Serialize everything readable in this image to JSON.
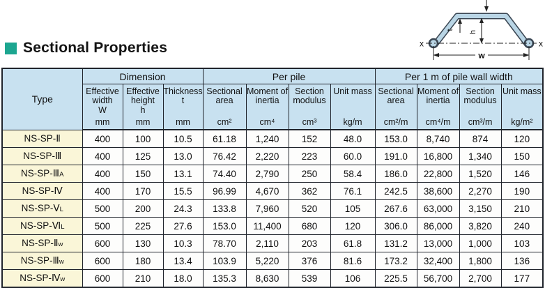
{
  "title": "Sectional Properties",
  "accent_color": "#1ca690",
  "diagram": {
    "labels": {
      "t": "t",
      "h": "h",
      "w": "w",
      "x_left": "x",
      "x_right": "x"
    }
  },
  "table": {
    "corner_header": "Type",
    "groups": [
      {
        "label": "Dimension",
        "span": 3
      },
      {
        "label": "Per pile",
        "span": 4
      },
      {
        "label": "Per 1 m of pile wall width",
        "span": 4
      }
    ],
    "columns": [
      {
        "label": "Effective width",
        "symbol": "W",
        "unit": "mm"
      },
      {
        "label": "Effective height",
        "symbol": "h",
        "unit": "mm"
      },
      {
        "label": "Thickness",
        "symbol": "t",
        "unit": "mm"
      },
      {
        "label": "Sectional area",
        "symbol": "",
        "unit": "cm²"
      },
      {
        "label": "Moment of inertia",
        "symbol": "",
        "unit": "cm⁴"
      },
      {
        "label": "Section modulus",
        "symbol": "",
        "unit": "cm³"
      },
      {
        "label": "Unit mass",
        "symbol": "",
        "unit": "kg/m"
      },
      {
        "label": "Sectional area",
        "symbol": "",
        "unit": "cm²/m"
      },
      {
        "label": "Moment of inertia",
        "symbol": "",
        "unit": "cm⁴/m"
      },
      {
        "label": "Section modulus",
        "symbol": "",
        "unit": "cm³/m"
      },
      {
        "label": "Unit mass",
        "symbol": "",
        "unit": "kg/m²"
      }
    ],
    "rows": [
      {
        "type": "NS-SP-Ⅱ",
        "type_sub": "",
        "values": [
          "400",
          "100",
          "10.5",
          "61.18",
          "1,240",
          "152",
          "48.0",
          "153.0",
          "8,740",
          "874",
          "120"
        ]
      },
      {
        "type": "NS-SP-Ⅲ",
        "type_sub": "",
        "values": [
          "400",
          "125",
          "13.0",
          "76.42",
          "2,220",
          "223",
          "60.0",
          "191.0",
          "16,800",
          "1,340",
          "150"
        ]
      },
      {
        "type": "NS-SP-Ⅲ",
        "type_sub": "A",
        "values": [
          "400",
          "150",
          "13.1",
          "74.40",
          "2,790",
          "250",
          "58.4",
          "186.0",
          "22,800",
          "1,520",
          "146"
        ]
      },
      {
        "type": "NS-SP-Ⅳ",
        "type_sub": "",
        "values": [
          "400",
          "170",
          "15.5",
          "96.99",
          "4,670",
          "362",
          "76.1",
          "242.5",
          "38,600",
          "2,270",
          "190"
        ]
      },
      {
        "type": "NS-SP-Ⅴ",
        "type_sub": "L",
        "values": [
          "500",
          "200",
          "24.3",
          "133.8",
          "7,960",
          "520",
          "105",
          "267.6",
          "63,000",
          "3,150",
          "210"
        ]
      },
      {
        "type": "NS-SP-Ⅵ",
        "type_sub": "L",
        "values": [
          "500",
          "225",
          "27.6",
          "153.0",
          "11,400",
          "680",
          "120",
          "306.0",
          "86,000",
          "3,820",
          "240"
        ]
      },
      {
        "type": "NS-SP-Ⅱ",
        "type_sub": "w",
        "values": [
          "600",
          "130",
          "10.3",
          "78.70",
          "2,110",
          "203",
          "61.8",
          "131.2",
          "13,000",
          "1,000",
          "103"
        ]
      },
      {
        "type": "NS-SP-Ⅲ",
        "type_sub": "w",
        "values": [
          "600",
          "180",
          "13.4",
          "103.9",
          "5,220",
          "376",
          "81.6",
          "173.2",
          "32,400",
          "1,800",
          "136"
        ]
      },
      {
        "type": "NS-SP-Ⅳ",
        "type_sub": "w",
        "values": [
          "600",
          "210",
          "18.0",
          "135.3",
          "8,630",
          "539",
          "106",
          "225.5",
          "56,700",
          "2,700",
          "177"
        ]
      }
    ]
  }
}
